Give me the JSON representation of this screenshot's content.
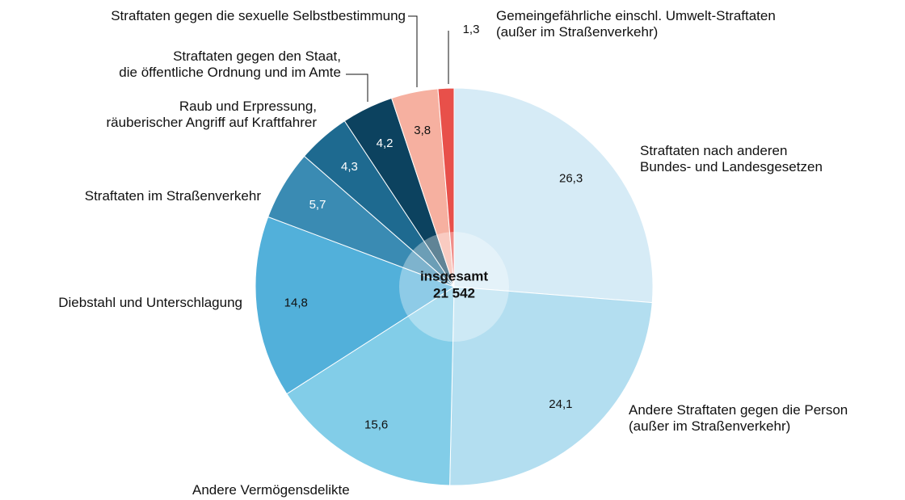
{
  "chart_data": {
    "type": "pie",
    "categories": [
      "Straftaten nach anderen\nBundes- und Landesgesetzen",
      "Andere Straftaten gegen die Person\n(außer im Straßenverkehr)",
      "Andere Vermögensdelikte",
      "Diebstahl und Unterschlagung",
      "Straftaten im Straßenverkehr",
      "Raub und Erpressung,\nräuberischer Angriff auf Kraftfahrer",
      "Straftaten gegen den Staat,\ndie öffentliche Ordnung und im Amte",
      "Straftaten gegen die sexuelle Selbstbestimmung",
      "Gemeingefährliche einschl. Umwelt-Straftaten\n(außer im Straßenverkehr)"
    ],
    "values": [
      26.3,
      24.1,
      15.6,
      14.8,
      5.7,
      4.3,
      4.2,
      3.8,
      1.3
    ],
    "value_labels": [
      "26,3",
      "24,1",
      "15,6",
      "14,8",
      "5,7",
      "4,3",
      "4,2",
      "3,8",
      "1,3"
    ],
    "colors": [
      "#d6ebf6",
      "#b3def0",
      "#82cde8",
      "#52b0da",
      "#3a8bb3",
      "#1e6a90",
      "#0c425f",
      "#f6b0a0",
      "#e8504a"
    ],
    "center_label": "insgesamt",
    "total": {
      "value": 21542,
      "label": "21 542"
    }
  }
}
